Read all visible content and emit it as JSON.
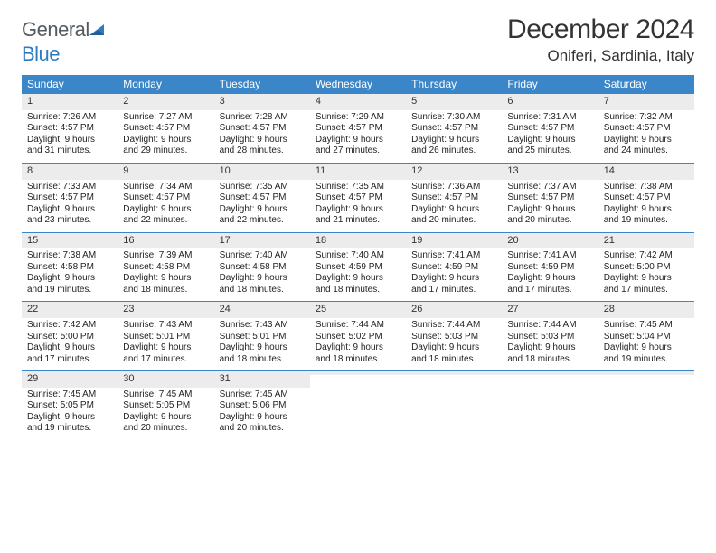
{
  "logo": {
    "general": "General",
    "blue": "Blue"
  },
  "title": "December 2024",
  "location": "Oniferi, Sardinia, Italy",
  "colors": {
    "header_bg": "#3a86c8",
    "header_text": "#ffffff",
    "daynum_bg": "#ececec",
    "cell_border": "#3a86c8",
    "page_bg": "#ffffff",
    "text": "#222222",
    "logo_general": "#555a5f",
    "logo_blue": "#2f7bbf"
  },
  "columns": [
    "Sunday",
    "Monday",
    "Tuesday",
    "Wednesday",
    "Thursday",
    "Friday",
    "Saturday"
  ],
  "weeks": [
    [
      {
        "n": "1",
        "sr": "Sunrise: 7:26 AM",
        "ss": "Sunset: 4:57 PM",
        "d1": "Daylight: 9 hours",
        "d2": "and 31 minutes."
      },
      {
        "n": "2",
        "sr": "Sunrise: 7:27 AM",
        "ss": "Sunset: 4:57 PM",
        "d1": "Daylight: 9 hours",
        "d2": "and 29 minutes."
      },
      {
        "n": "3",
        "sr": "Sunrise: 7:28 AM",
        "ss": "Sunset: 4:57 PM",
        "d1": "Daylight: 9 hours",
        "d2": "and 28 minutes."
      },
      {
        "n": "4",
        "sr": "Sunrise: 7:29 AM",
        "ss": "Sunset: 4:57 PM",
        "d1": "Daylight: 9 hours",
        "d2": "and 27 minutes."
      },
      {
        "n": "5",
        "sr": "Sunrise: 7:30 AM",
        "ss": "Sunset: 4:57 PM",
        "d1": "Daylight: 9 hours",
        "d2": "and 26 minutes."
      },
      {
        "n": "6",
        "sr": "Sunrise: 7:31 AM",
        "ss": "Sunset: 4:57 PM",
        "d1": "Daylight: 9 hours",
        "d2": "and 25 minutes."
      },
      {
        "n": "7",
        "sr": "Sunrise: 7:32 AM",
        "ss": "Sunset: 4:57 PM",
        "d1": "Daylight: 9 hours",
        "d2": "and 24 minutes."
      }
    ],
    [
      {
        "n": "8",
        "sr": "Sunrise: 7:33 AM",
        "ss": "Sunset: 4:57 PM",
        "d1": "Daylight: 9 hours",
        "d2": "and 23 minutes."
      },
      {
        "n": "9",
        "sr": "Sunrise: 7:34 AM",
        "ss": "Sunset: 4:57 PM",
        "d1": "Daylight: 9 hours",
        "d2": "and 22 minutes."
      },
      {
        "n": "10",
        "sr": "Sunrise: 7:35 AM",
        "ss": "Sunset: 4:57 PM",
        "d1": "Daylight: 9 hours",
        "d2": "and 22 minutes."
      },
      {
        "n": "11",
        "sr": "Sunrise: 7:35 AM",
        "ss": "Sunset: 4:57 PM",
        "d1": "Daylight: 9 hours",
        "d2": "and 21 minutes."
      },
      {
        "n": "12",
        "sr": "Sunrise: 7:36 AM",
        "ss": "Sunset: 4:57 PM",
        "d1": "Daylight: 9 hours",
        "d2": "and 20 minutes."
      },
      {
        "n": "13",
        "sr": "Sunrise: 7:37 AM",
        "ss": "Sunset: 4:57 PM",
        "d1": "Daylight: 9 hours",
        "d2": "and 20 minutes."
      },
      {
        "n": "14",
        "sr": "Sunrise: 7:38 AM",
        "ss": "Sunset: 4:57 PM",
        "d1": "Daylight: 9 hours",
        "d2": "and 19 minutes."
      }
    ],
    [
      {
        "n": "15",
        "sr": "Sunrise: 7:38 AM",
        "ss": "Sunset: 4:58 PM",
        "d1": "Daylight: 9 hours",
        "d2": "and 19 minutes."
      },
      {
        "n": "16",
        "sr": "Sunrise: 7:39 AM",
        "ss": "Sunset: 4:58 PM",
        "d1": "Daylight: 9 hours",
        "d2": "and 18 minutes."
      },
      {
        "n": "17",
        "sr": "Sunrise: 7:40 AM",
        "ss": "Sunset: 4:58 PM",
        "d1": "Daylight: 9 hours",
        "d2": "and 18 minutes."
      },
      {
        "n": "18",
        "sr": "Sunrise: 7:40 AM",
        "ss": "Sunset: 4:59 PM",
        "d1": "Daylight: 9 hours",
        "d2": "and 18 minutes."
      },
      {
        "n": "19",
        "sr": "Sunrise: 7:41 AM",
        "ss": "Sunset: 4:59 PM",
        "d1": "Daylight: 9 hours",
        "d2": "and 17 minutes."
      },
      {
        "n": "20",
        "sr": "Sunrise: 7:41 AM",
        "ss": "Sunset: 4:59 PM",
        "d1": "Daylight: 9 hours",
        "d2": "and 17 minutes."
      },
      {
        "n": "21",
        "sr": "Sunrise: 7:42 AM",
        "ss": "Sunset: 5:00 PM",
        "d1": "Daylight: 9 hours",
        "d2": "and 17 minutes."
      }
    ],
    [
      {
        "n": "22",
        "sr": "Sunrise: 7:42 AM",
        "ss": "Sunset: 5:00 PM",
        "d1": "Daylight: 9 hours",
        "d2": "and 17 minutes."
      },
      {
        "n": "23",
        "sr": "Sunrise: 7:43 AM",
        "ss": "Sunset: 5:01 PM",
        "d1": "Daylight: 9 hours",
        "d2": "and 17 minutes."
      },
      {
        "n": "24",
        "sr": "Sunrise: 7:43 AM",
        "ss": "Sunset: 5:01 PM",
        "d1": "Daylight: 9 hours",
        "d2": "and 18 minutes."
      },
      {
        "n": "25",
        "sr": "Sunrise: 7:44 AM",
        "ss": "Sunset: 5:02 PM",
        "d1": "Daylight: 9 hours",
        "d2": "and 18 minutes."
      },
      {
        "n": "26",
        "sr": "Sunrise: 7:44 AM",
        "ss": "Sunset: 5:03 PM",
        "d1": "Daylight: 9 hours",
        "d2": "and 18 minutes."
      },
      {
        "n": "27",
        "sr": "Sunrise: 7:44 AM",
        "ss": "Sunset: 5:03 PM",
        "d1": "Daylight: 9 hours",
        "d2": "and 18 minutes."
      },
      {
        "n": "28",
        "sr": "Sunrise: 7:45 AM",
        "ss": "Sunset: 5:04 PM",
        "d1": "Daylight: 9 hours",
        "d2": "and 19 minutes."
      }
    ],
    [
      {
        "n": "29",
        "sr": "Sunrise: 7:45 AM",
        "ss": "Sunset: 5:05 PM",
        "d1": "Daylight: 9 hours",
        "d2": "and 19 minutes."
      },
      {
        "n": "30",
        "sr": "Sunrise: 7:45 AM",
        "ss": "Sunset: 5:05 PM",
        "d1": "Daylight: 9 hours",
        "d2": "and 20 minutes."
      },
      {
        "n": "31",
        "sr": "Sunrise: 7:45 AM",
        "ss": "Sunset: 5:06 PM",
        "d1": "Daylight: 9 hours",
        "d2": "and 20 minutes."
      },
      {
        "n": "",
        "sr": "",
        "ss": "",
        "d1": "",
        "d2": ""
      },
      {
        "n": "",
        "sr": "",
        "ss": "",
        "d1": "",
        "d2": ""
      },
      {
        "n": "",
        "sr": "",
        "ss": "",
        "d1": "",
        "d2": ""
      },
      {
        "n": "",
        "sr": "",
        "ss": "",
        "d1": "",
        "d2": ""
      }
    ]
  ]
}
